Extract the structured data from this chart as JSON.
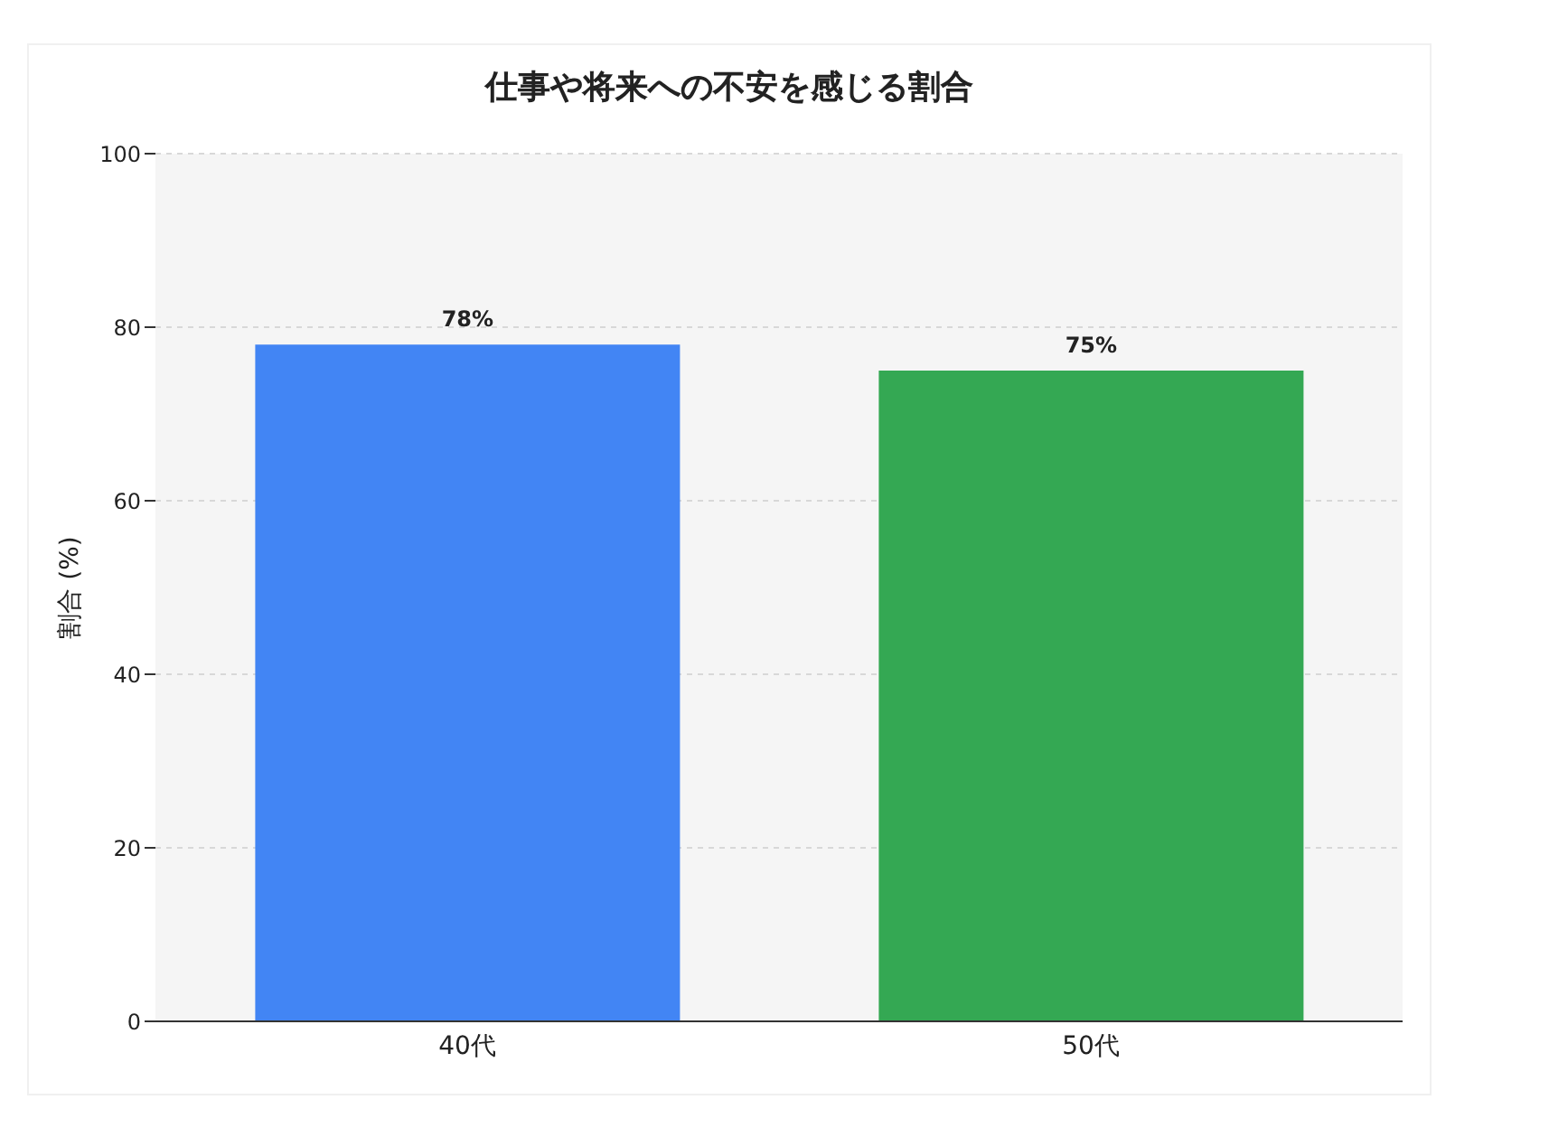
{
  "chart_data": {
    "type": "bar",
    "title": "仕事や将来への不安を感じる割合",
    "ylabel": "割合 (%)",
    "categories": [
      "40代",
      "50代"
    ],
    "values": [
      78,
      75
    ],
    "colors": [
      "#4285f4",
      "#34a853"
    ],
    "value_labels": [
      "78%",
      "75%"
    ],
    "ylim": [
      0,
      100
    ],
    "yticks": [
      0,
      20,
      40,
      60,
      80,
      100
    ],
    "grid": "y"
  }
}
